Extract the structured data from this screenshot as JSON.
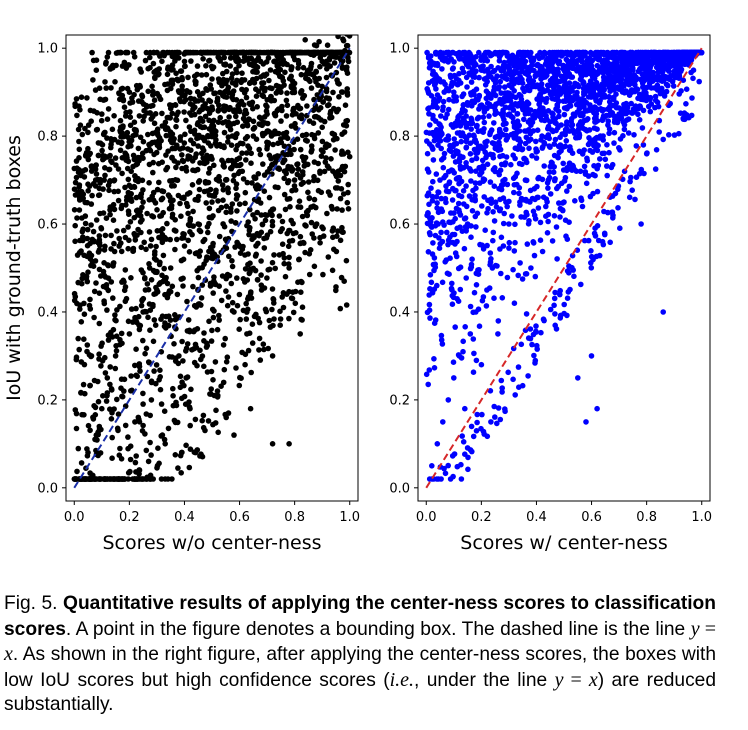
{
  "chart_data": [
    {
      "type": "scatter",
      "title": "",
      "xlabel": "Scores w/o center-ness",
      "ylabel": "IoU with ground-truth boxes",
      "xlim": [
        -0.03,
        1.03
      ],
      "ylim": [
        -0.03,
        1.03
      ],
      "xticks": [
        "0.0",
        "0.2",
        "0.4",
        "0.6",
        "0.8",
        "1.0"
      ],
      "yticks": [
        "0.0",
        "0.2",
        "0.4",
        "0.6",
        "0.8",
        "1.0"
      ],
      "grid": false,
      "point_color": "#000000",
      "line": {
        "label": "y = x",
        "style": "dashed",
        "color": "#1a2fa8"
      },
      "points": [
        [
          0.05,
          0.08
        ],
        [
          0.08,
          0.12
        ],
        [
          0.1,
          0.18
        ],
        [
          0.12,
          0.25
        ],
        [
          0.15,
          0.3
        ],
        [
          0.18,
          0.22
        ],
        [
          0.2,
          0.35
        ],
        [
          0.22,
          0.15
        ],
        [
          0.25,
          0.4
        ],
        [
          0.28,
          0.2
        ],
        [
          0.3,
          0.45
        ],
        [
          0.32,
          0.12
        ],
        [
          0.35,
          0.5
        ],
        [
          0.38,
          0.3
        ],
        [
          0.4,
          0.55
        ],
        [
          0.42,
          0.18
        ],
        [
          0.45,
          0.6
        ],
        [
          0.48,
          0.32
        ],
        [
          0.5,
          0.65
        ],
        [
          0.52,
          0.22
        ],
        [
          0.55,
          0.7
        ],
        [
          0.58,
          0.4
        ],
        [
          0.6,
          0.75
        ],
        [
          0.62,
          0.28
        ],
        [
          0.65,
          0.8
        ],
        [
          0.68,
          0.45
        ],
        [
          0.7,
          0.85
        ],
        [
          0.72,
          0.3
        ],
        [
          0.75,
          0.9
        ],
        [
          0.78,
          0.5
        ],
        [
          0.8,
          0.92
        ],
        [
          0.82,
          0.35
        ],
        [
          0.85,
          0.95
        ],
        [
          0.88,
          0.6
        ],
        [
          0.9,
          0.97
        ],
        [
          0.95,
          0.98
        ],
        [
          0.98,
          0.47
        ],
        [
          0.2,
          0.9
        ],
        [
          0.3,
          0.95
        ],
        [
          0.4,
          0.97
        ],
        [
          0.5,
          0.93
        ],
        [
          0.1,
          0.85
        ],
        [
          0.15,
          0.75
        ],
        [
          0.25,
          0.65
        ],
        [
          0.35,
          0.8
        ],
        [
          0.45,
          0.88
        ],
        [
          0.55,
          0.92
        ],
        [
          0.65,
          0.96
        ],
        [
          0.75,
          0.98
        ],
        [
          0.85,
          0.99
        ],
        [
          0.08,
          0.95
        ],
        [
          0.12,
          0.98
        ],
        [
          0.6,
          0.55
        ],
        [
          0.7,
          0.62
        ],
        [
          0.8,
          0.7
        ],
        [
          0.9,
          0.82
        ],
        [
          0.33,
          0.1
        ],
        [
          0.44,
          0.08
        ],
        [
          0.27,
          0.06
        ],
        [
          0.58,
          0.12
        ],
        [
          0.72,
          0.1
        ],
        [
          0.78,
          0.1
        ],
        [
          0.64,
          0.18
        ]
      ]
    },
    {
      "type": "scatter",
      "title": "",
      "xlabel": "Scores w/ center-ness",
      "ylabel": "",
      "xlim": [
        -0.03,
        1.03
      ],
      "ylim": [
        -0.03,
        1.03
      ],
      "xticks": [
        "0.0",
        "0.2",
        "0.4",
        "0.6",
        "0.8",
        "1.0"
      ],
      "yticks": [
        "0.0",
        "0.2",
        "0.4",
        "0.6",
        "0.8",
        "1.0"
      ],
      "grid": false,
      "point_color": "#0000ff",
      "line": {
        "label": "y = x",
        "style": "dashed",
        "color": "#d62728"
      },
      "points": [
        [
          0.02,
          0.05
        ],
        [
          0.04,
          0.1
        ],
        [
          0.06,
          0.15
        ],
        [
          0.08,
          0.2
        ],
        [
          0.1,
          0.25
        ],
        [
          0.12,
          0.3
        ],
        [
          0.14,
          0.18
        ],
        [
          0.16,
          0.35
        ],
        [
          0.18,
          0.4
        ],
        [
          0.2,
          0.28
        ],
        [
          0.22,
          0.45
        ],
        [
          0.24,
          0.5
        ],
        [
          0.26,
          0.35
        ],
        [
          0.28,
          0.55
        ],
        [
          0.3,
          0.6
        ],
        [
          0.32,
          0.42
        ],
        [
          0.34,
          0.65
        ],
        [
          0.36,
          0.7
        ],
        [
          0.38,
          0.5
        ],
        [
          0.4,
          0.75
        ],
        [
          0.42,
          0.8
        ],
        [
          0.44,
          0.58
        ],
        [
          0.46,
          0.85
        ],
        [
          0.48,
          0.88
        ],
        [
          0.5,
          0.65
        ],
        [
          0.52,
          0.9
        ],
        [
          0.54,
          0.92
        ],
        [
          0.56,
          0.72
        ],
        [
          0.58,
          0.94
        ],
        [
          0.6,
          0.96
        ],
        [
          0.62,
          0.78
        ],
        [
          0.64,
          0.97
        ],
        [
          0.66,
          0.98
        ],
        [
          0.7,
          0.85
        ],
        [
          0.75,
          0.95
        ],
        [
          0.8,
          0.97
        ],
        [
          0.85,
          0.98
        ],
        [
          0.88,
          0.87
        ],
        [
          0.97,
          0.95
        ],
        [
          0.86,
          0.4
        ],
        [
          0.78,
          0.6
        ],
        [
          0.72,
          0.72
        ],
        [
          0.1,
          0.9
        ],
        [
          0.2,
          0.95
        ],
        [
          0.3,
          0.97
        ],
        [
          0.05,
          0.7
        ],
        [
          0.08,
          0.8
        ],
        [
          0.15,
          0.6
        ],
        [
          0.6,
          0.3
        ],
        [
          0.55,
          0.25
        ],
        [
          0.62,
          0.18
        ],
        [
          0.58,
          0.15
        ]
      ]
    }
  ],
  "caption": {
    "fig_label": "Fig. 5. ",
    "bold_text": "Quantitative results of applying the center-ness scores to classification scores",
    "text_1": ". A point in the figure denotes a bounding box. The dashed line is the line ",
    "math_1_lhs": "y",
    "math_1_op": " = ",
    "math_1_rhs": "x",
    "text_2": ". As shown in the right figure, after applying the center-ness scores, the boxes with low IoU scores but high confidence scores (",
    "ie": "i.e.",
    "text_3": ", under the line ",
    "math_2_lhs": "y",
    "math_2_op": " = ",
    "math_2_rhs": "x",
    "text_4": ") are reduced substantially."
  }
}
